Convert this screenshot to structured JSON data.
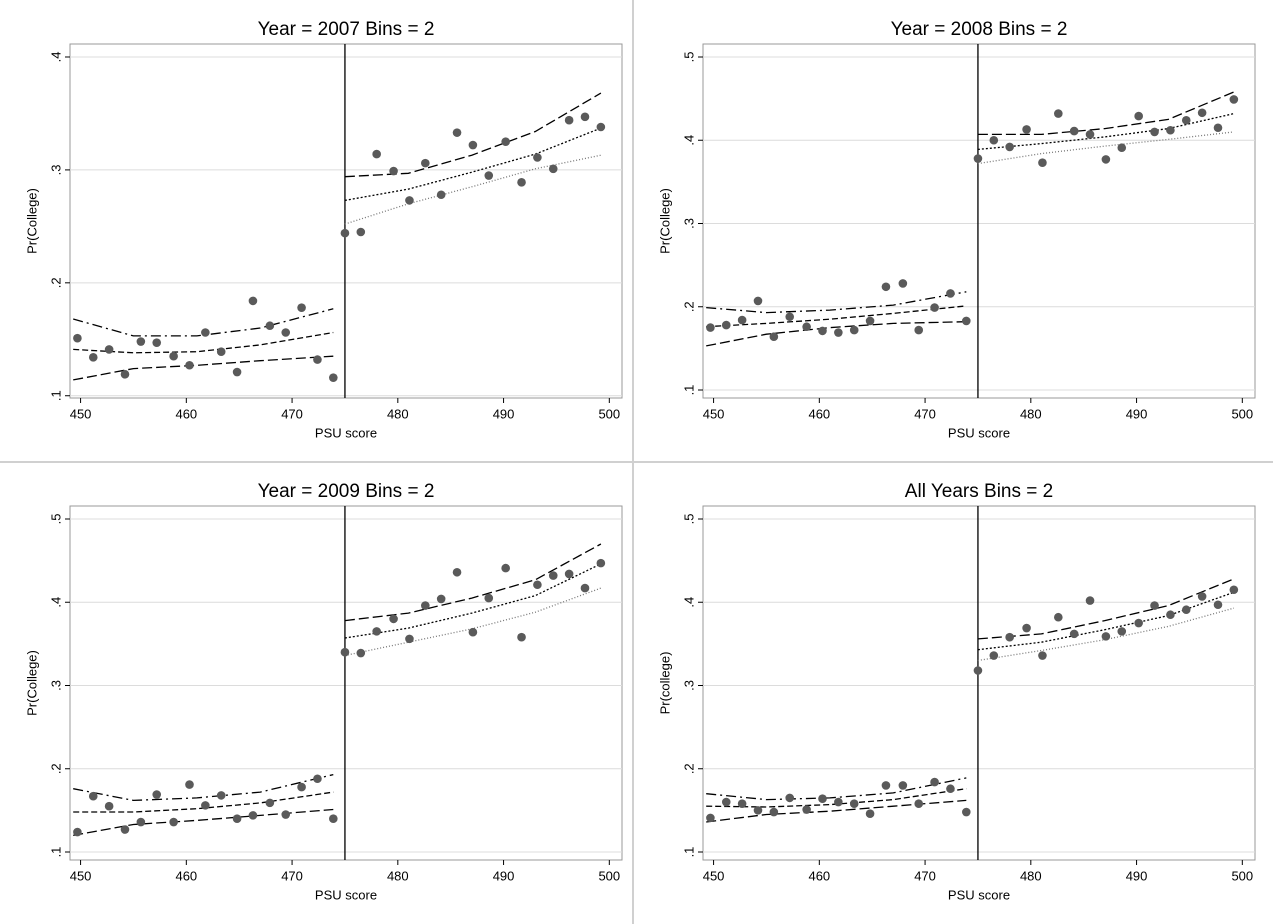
{
  "chart_data": [
    {
      "type": "scatter",
      "title": "Year = 2007 Bins = 2",
      "xlabel": "PSU score",
      "ylabel": "Pr(College)",
      "xlim": [
        449,
        501.2
      ],
      "xticks": [
        450,
        460,
        470,
        480,
        490,
        500
      ],
      "ylim": [
        0.098,
        0.4115
      ],
      "yticks": [
        {
          "value": 0.1,
          "label": ".1"
        },
        {
          "value": 0.2,
          "label": ".2"
        },
        {
          "value": 0.3,
          "label": ".3"
        },
        {
          "value": 0.4,
          "label": ".4"
        }
      ],
      "grid": true,
      "cutoff": 475,
      "color": "#5a5a5a",
      "x": [
        449.7,
        451.2,
        452.7,
        454.2,
        455.7,
        457.2,
        458.8,
        460.3,
        461.8,
        463.3,
        464.8,
        466.3,
        467.9,
        469.4,
        470.9,
        472.4,
        473.9,
        475.0,
        476.5,
        478.0,
        479.6,
        481.1,
        482.6,
        484.1,
        485.6,
        487.1,
        488.6,
        490.2,
        491.7,
        493.2,
        494.7,
        496.2,
        497.7,
        499.2
      ],
      "values": [
        0.151,
        0.134,
        0.141,
        0.119,
        0.148,
        0.147,
        0.135,
        0.127,
        0.156,
        0.139,
        0.121,
        0.184,
        0.162,
        0.156,
        0.178,
        0.132,
        0.116,
        0.244,
        0.245,
        0.314,
        0.299,
        0.273,
        0.306,
        0.278,
        0.333,
        0.322,
        0.295,
        0.325,
        0.289,
        0.311,
        0.301,
        0.344,
        0.347,
        0.338
      ],
      "lines": [
        {
          "style": "dash-dot",
          "x": [
            449.3,
            455,
            461,
            467,
            473.9
          ],
          "values": [
            0.168,
            0.153,
            0.153,
            0.16,
            0.177
          ]
        },
        {
          "style": "dash",
          "x": [
            449.3,
            455,
            461,
            467,
            473.9
          ],
          "values": [
            0.141,
            0.138,
            0.139,
            0.145,
            0.156
          ]
        },
        {
          "style": "long-dash",
          "x": [
            449.3,
            455,
            461,
            467,
            473.9
          ],
          "values": [
            0.114,
            0.124,
            0.127,
            0.131,
            0.135
          ]
        },
        {
          "style": "long-dash",
          "x": [
            475,
            481,
            487,
            493,
            499.2
          ],
          "values": [
            0.294,
            0.297,
            0.313,
            0.334,
            0.368
          ]
        },
        {
          "style": "dot",
          "x": [
            475,
            481,
            487,
            493,
            499.2
          ],
          "values": [
            0.273,
            0.283,
            0.298,
            0.314,
            0.337
          ]
        },
        {
          "style": "fine-dot",
          "x": [
            475,
            481,
            487,
            493,
            499.2
          ],
          "values": [
            0.252,
            0.27,
            0.285,
            0.301,
            0.313
          ]
        }
      ]
    },
    {
      "type": "scatter",
      "title": "Year = 2008 Bins = 2",
      "xlabel": "PSU score",
      "ylabel": "Pr(College)",
      "xlim": [
        449,
        501.2
      ],
      "xticks": [
        450,
        460,
        470,
        480,
        490,
        500
      ],
      "ylim": [
        0.0904,
        0.5156
      ],
      "yticks": [
        {
          "value": 0.1,
          "label": ".1"
        },
        {
          "value": 0.2,
          "label": ".2"
        },
        {
          "value": 0.3,
          "label": ".3"
        },
        {
          "value": 0.4,
          "label": ".4"
        },
        {
          "value": 0.5,
          "label": ".5"
        }
      ],
      "grid": true,
      "cutoff": 475,
      "color": "#5a5a5a",
      "x": [
        449.7,
        451.2,
        452.7,
        454.2,
        455.7,
        457.2,
        458.8,
        460.3,
        461.8,
        463.3,
        464.8,
        466.3,
        467.9,
        469.4,
        470.9,
        472.4,
        473.9,
        475.0,
        476.5,
        478.0,
        479.6,
        481.1,
        482.6,
        484.1,
        485.6,
        487.1,
        488.6,
        490.2,
        491.7,
        493.2,
        494.7,
        496.2,
        497.7,
        499.2
      ],
      "values": [
        0.175,
        0.178,
        0.184,
        0.207,
        0.164,
        0.188,
        0.176,
        0.171,
        0.169,
        0.172,
        0.183,
        0.224,
        0.228,
        0.172,
        0.199,
        0.216,
        0.183,
        0.378,
        0.4,
        0.392,
        0.413,
        0.373,
        0.432,
        0.411,
        0.407,
        0.377,
        0.391,
        0.429,
        0.41,
        0.412,
        0.424,
        0.433,
        0.415,
        0.449
      ],
      "lines": [
        {
          "style": "dash-dot",
          "x": [
            449.3,
            455,
            461,
            467,
            473.9
          ],
          "values": [
            0.199,
            0.193,
            0.196,
            0.202,
            0.218
          ]
        },
        {
          "style": "dash",
          "x": [
            449.3,
            455,
            461,
            467,
            473.9
          ],
          "values": [
            0.176,
            0.18,
            0.185,
            0.192,
            0.201
          ]
        },
        {
          "style": "long-dash",
          "x": [
            449.3,
            455,
            461,
            467,
            473.9
          ],
          "values": [
            0.153,
            0.167,
            0.175,
            0.18,
            0.182
          ]
        },
        {
          "style": "long-dash",
          "x": [
            475,
            481,
            487,
            493,
            499.2
          ],
          "values": [
            0.407,
            0.407,
            0.414,
            0.425,
            0.458
          ]
        },
        {
          "style": "dot",
          "x": [
            475,
            481,
            487,
            493,
            499.2
          ],
          "values": [
            0.389,
            0.396,
            0.404,
            0.414,
            0.432
          ]
        },
        {
          "style": "fine-dot",
          "x": [
            475,
            481,
            487,
            493,
            499.2
          ],
          "values": [
            0.372,
            0.384,
            0.393,
            0.401,
            0.41
          ]
        }
      ]
    },
    {
      "type": "scatter",
      "title": "Year = 2009 Bins = 2",
      "xlabel": "PSU score",
      "ylabel": "Pr(College)",
      "xlim": [
        449,
        501.2
      ],
      "xticks": [
        450,
        460,
        470,
        480,
        490,
        500
      ],
      "ylim": [
        0.0904,
        0.5156
      ],
      "yticks": [
        {
          "value": 0.1,
          "label": ".1"
        },
        {
          "value": 0.2,
          "label": ".2"
        },
        {
          "value": 0.3,
          "label": ".3"
        },
        {
          "value": 0.4,
          "label": ".4"
        },
        {
          "value": 0.5,
          "label": ".5"
        }
      ],
      "grid": true,
      "cutoff": 475,
      "color": "#5a5a5a",
      "x": [
        449.7,
        451.2,
        452.7,
        454.2,
        455.7,
        457.2,
        458.8,
        460.3,
        461.8,
        463.3,
        464.8,
        466.3,
        467.9,
        469.4,
        470.9,
        472.4,
        473.9,
        475.0,
        476.5,
        478.0,
        479.6,
        481.1,
        482.6,
        484.1,
        485.6,
        487.1,
        488.6,
        490.2,
        491.7,
        493.2,
        494.7,
        496.2,
        497.7,
        499.2
      ],
      "values": [
        0.124,
        0.167,
        0.155,
        0.127,
        0.136,
        0.169,
        0.136,
        0.181,
        0.156,
        0.168,
        0.14,
        0.144,
        0.159,
        0.145,
        0.178,
        0.188,
        0.14,
        0.34,
        0.339,
        0.365,
        0.38,
        0.356,
        0.396,
        0.404,
        0.436,
        0.364,
        0.405,
        0.441,
        0.358,
        0.421,
        0.432,
        0.434,
        0.417,
        0.447
      ],
      "lines": [
        {
          "style": "dash-dot",
          "x": [
            449.3,
            455,
            461,
            467,
            473.9
          ],
          "values": [
            0.176,
            0.162,
            0.165,
            0.172,
            0.193
          ]
        },
        {
          "style": "dash",
          "x": [
            449.3,
            455,
            461,
            467,
            473.9
          ],
          "values": [
            0.148,
            0.148,
            0.152,
            0.159,
            0.172
          ]
        },
        {
          "style": "long-dash",
          "x": [
            449.3,
            455,
            461,
            467,
            473.9
          ],
          "values": [
            0.12,
            0.133,
            0.138,
            0.144,
            0.151
          ]
        },
        {
          "style": "long-dash",
          "x": [
            475,
            481,
            487,
            493,
            499.2
          ],
          "values": [
            0.378,
            0.387,
            0.405,
            0.427,
            0.47
          ]
        },
        {
          "style": "dot",
          "x": [
            475,
            481,
            487,
            493,
            499.2
          ],
          "values": [
            0.357,
            0.369,
            0.387,
            0.408,
            0.446
          ]
        },
        {
          "style": "fine-dot",
          "x": [
            475,
            481,
            487,
            493,
            499.2
          ],
          "values": [
            0.336,
            0.352,
            0.368,
            0.388,
            0.417
          ]
        }
      ]
    },
    {
      "type": "scatter",
      "title": "All Years Bins = 2",
      "xlabel": "PSU score",
      "ylabel": "Pr(college)",
      "xlim": [
        449,
        501.2
      ],
      "xticks": [
        450,
        460,
        470,
        480,
        490,
        500
      ],
      "ylim": [
        0.0904,
        0.5156
      ],
      "yticks": [
        {
          "value": 0.1,
          "label": ".1"
        },
        {
          "value": 0.2,
          "label": ".2"
        },
        {
          "value": 0.3,
          "label": ".3"
        },
        {
          "value": 0.4,
          "label": ".4"
        },
        {
          "value": 0.5,
          "label": ".5"
        }
      ],
      "grid": true,
      "cutoff": 475,
      "color": "#5a5a5a",
      "x": [
        449.7,
        451.2,
        452.7,
        454.2,
        455.7,
        457.2,
        458.8,
        460.3,
        461.8,
        463.3,
        464.8,
        466.3,
        467.9,
        469.4,
        470.9,
        472.4,
        473.9,
        475.0,
        476.5,
        478.0,
        479.6,
        481.1,
        482.6,
        484.1,
        485.6,
        487.1,
        488.6,
        490.2,
        491.7,
        493.2,
        494.7,
        496.2,
        497.7,
        499.2
      ],
      "values": [
        0.141,
        0.16,
        0.158,
        0.15,
        0.148,
        0.165,
        0.151,
        0.164,
        0.16,
        0.158,
        0.146,
        0.18,
        0.18,
        0.158,
        0.184,
        0.176,
        0.148,
        0.318,
        0.336,
        0.358,
        0.369,
        0.336,
        0.382,
        0.362,
        0.402,
        0.359,
        0.365,
        0.375,
        0.396,
        0.385,
        0.391,
        0.407,
        0.397,
        0.415
      ],
      "lines": [
        {
          "style": "dash-dot",
          "x": [
            449.3,
            455,
            461,
            467,
            473.9
          ],
          "values": [
            0.17,
            0.163,
            0.165,
            0.171,
            0.189
          ]
        },
        {
          "style": "dash",
          "x": [
            449.3,
            455,
            461,
            467,
            473.9
          ],
          "values": [
            0.155,
            0.154,
            0.157,
            0.163,
            0.176
          ]
        },
        {
          "style": "long-dash",
          "x": [
            449.3,
            455,
            461,
            467,
            473.9
          ],
          "values": [
            0.136,
            0.145,
            0.149,
            0.155,
            0.162
          ]
        },
        {
          "style": "long-dash",
          "x": [
            475,
            481,
            487,
            493,
            499.2
          ],
          "values": [
            0.356,
            0.362,
            0.378,
            0.396,
            0.428
          ]
        },
        {
          "style": "dot",
          "x": [
            475,
            481,
            487,
            493,
            499.2
          ],
          "values": [
            0.343,
            0.352,
            0.367,
            0.384,
            0.412
          ]
        },
        {
          "style": "fine-dot",
          "x": [
            475,
            481,
            487,
            493,
            499.2
          ],
          "values": [
            0.33,
            0.342,
            0.355,
            0.371,
            0.393
          ]
        }
      ]
    }
  ]
}
